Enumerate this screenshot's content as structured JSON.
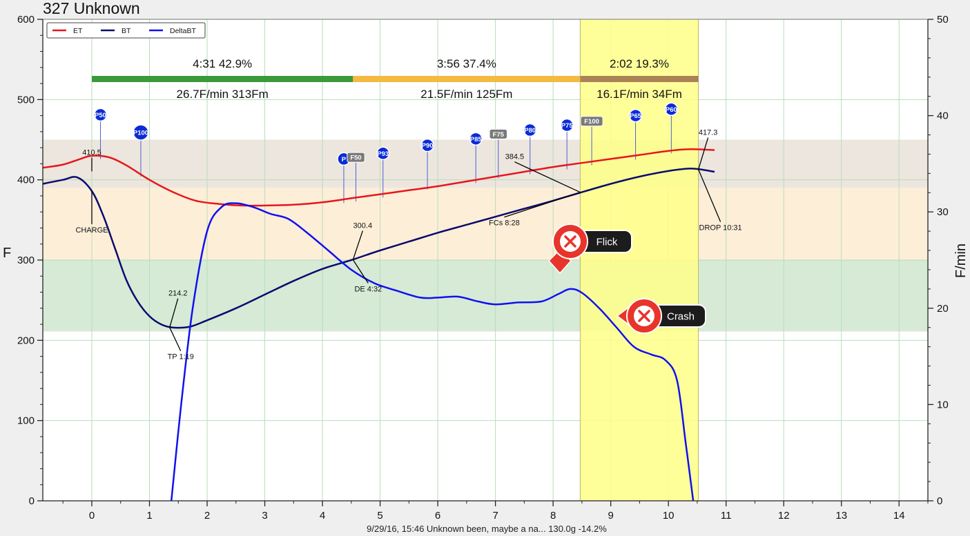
{
  "title": "327 Unknown",
  "footer": "9/29/16, 15:46   Unknown been, maybe a na...   130.0g   -14.2%",
  "y_left_label": "F",
  "y_right_label": "F/min",
  "colors": {
    "et": "#e8151b",
    "bt": "#0a0a6e",
    "delta": "#1010f0",
    "highlight": "#ffff88",
    "dry_phase": "#3a9a3a",
    "maillard_phase": "#f5b942",
    "dev_phase": "#a98356",
    "band_green": "#d6ead6",
    "band_orange": "#fdeed8",
    "band_gray": "#ece6de",
    "bubble_red": "#e8342a",
    "bubble_dark": "#1c1c1c"
  },
  "legend": [
    {
      "label": "ET",
      "color": "#e8151b"
    },
    {
      "label": "BT",
      "color": "#0a0a6e"
    },
    {
      "label": "DeltaBT",
      "color": "#1010f0"
    }
  ],
  "phases": [
    {
      "top": "4:31  42.9%",
      "bottom": "26.7F/min  313Fm",
      "start": 0,
      "end": 4.53,
      "color": "#3a9a3a"
    },
    {
      "top": "3:56  37.4%",
      "bottom": "21.5F/min  125Fm",
      "start": 4.53,
      "end": 8.47,
      "color": "#f5b942"
    },
    {
      "top": "2:02  19.3%",
      "bottom": "16.1F/min  34Fm",
      "start": 8.47,
      "end": 10.52,
      "color": "#a98356"
    }
  ],
  "bubbles": [
    {
      "label": "Flick",
      "pointer": "down"
    },
    {
      "label": "Crash",
      "pointer": "left"
    }
  ],
  "chart_data": {
    "type": "line",
    "title": "327 Unknown",
    "xlabel": "",
    "ylabel": "F",
    "y2label": "F/min",
    "xlim": [
      -0.85,
      14.5
    ],
    "ylim": [
      0,
      600
    ],
    "y2lim": [
      0,
      50
    ],
    "x_ticks": [
      0,
      1,
      2,
      3,
      4,
      5,
      6,
      7,
      8,
      9,
      10,
      11,
      12,
      13,
      14
    ],
    "y_ticks": [
      0,
      100,
      200,
      300,
      400,
      500,
      600
    ],
    "y2_ticks": [
      0,
      10,
      20,
      30,
      40,
      50
    ],
    "grid": true,
    "legend_position": "top-left",
    "bands": [
      {
        "from": 211,
        "to": 300,
        "color": "#d6ead6"
      },
      {
        "from": 300,
        "to": 390,
        "color": "#fdeed8"
      },
      {
        "from": 390,
        "to": 450,
        "color": "#ece6de"
      }
    ],
    "highlight_x": [
      8.47,
      10.52
    ],
    "series": [
      {
        "name": "ET",
        "axis": "left",
        "color": "#e8151b",
        "width": 2.5,
        "x": [
          -0.85,
          -0.5,
          -0.2,
          0,
          0.3,
          0.6,
          1.0,
          1.4,
          1.8,
          2.2,
          2.6,
          3.0,
          3.5,
          4.0,
          4.5,
          5.0,
          5.5,
          6.0,
          6.5,
          7.0,
          7.5,
          8.0,
          8.5,
          9.0,
          9.5,
          10.0,
          10.3,
          10.55,
          10.8
        ],
        "y": [
          415,
          419,
          426,
          430,
          428,
          418,
          400,
          385,
          374,
          370,
          368,
          368,
          369,
          372,
          377,
          382,
          387,
          392,
          398,
          404,
          410,
          416,
          421,
          426,
          431,
          436,
          438,
          438,
          437
        ]
      },
      {
        "name": "BT",
        "axis": "left",
        "color": "#0a0a6e",
        "width": 2.5,
        "x": [
          -0.85,
          -0.5,
          -0.25,
          0,
          0.2,
          0.4,
          0.6,
          0.8,
          1.0,
          1.2,
          1.4,
          1.7,
          2.0,
          2.5,
          3.0,
          3.5,
          4.0,
          4.5,
          5.0,
          5.5,
          6.0,
          6.5,
          7.0,
          7.5,
          8.0,
          8.47,
          9.0,
          9.5,
          10.0,
          10.35,
          10.55,
          10.8
        ],
        "y": [
          395,
          400,
          403,
          386,
          355,
          315,
          275,
          248,
          230,
          220,
          216,
          217,
          225,
          240,
          257,
          274,
          289,
          300,
          312,
          323,
          334,
          344,
          354,
          364,
          374,
          384,
          395,
          404,
          411,
          414,
          413,
          410
        ]
      },
      {
        "name": "DeltaBT",
        "axis": "right",
        "color": "#1010f0",
        "width": 2.5,
        "x": [
          1.38,
          1.55,
          1.75,
          2.0,
          2.25,
          2.5,
          2.8,
          3.1,
          3.4,
          3.7,
          4.1,
          4.5,
          4.9,
          5.3,
          5.7,
          6.0,
          6.35,
          6.7,
          7.0,
          7.4,
          7.8,
          8.1,
          8.3,
          8.5,
          8.8,
          9.1,
          9.4,
          9.7,
          9.95,
          10.15,
          10.3,
          10.43
        ],
        "y": [
          0,
          10,
          20,
          28,
          30.5,
          30.9,
          30.5,
          29.8,
          29.3,
          28.0,
          26.0,
          24.0,
          22.6,
          21.8,
          21.1,
          21.1,
          21.2,
          20.7,
          20.4,
          20.6,
          20.7,
          21.5,
          22.0,
          21.6,
          20.0,
          18.0,
          16.0,
          15.2,
          14.6,
          12.5,
          6.0,
          0
        ]
      }
    ],
    "annotations": [
      {
        "text": "410.5",
        "x": 0.0,
        "y": 410.5
      },
      {
        "text": "CHARGE",
        "x": 0.0,
        "y": 386
      },
      {
        "text": "214.2",
        "x": 1.35,
        "y": 216
      },
      {
        "text": "TP 1:19",
        "x": 1.35,
        "y": 216
      },
      {
        "text": "300.4",
        "x": 4.53,
        "y": 300.4
      },
      {
        "text": "DE 4:32",
        "x": 4.53,
        "y": 300.4
      },
      {
        "text": "384.5",
        "x": 8.47,
        "y": 384.5
      },
      {
        "text": "FCs 8:28",
        "x": 8.47,
        "y": 384.5
      },
      {
        "text": "417.3",
        "x": 10.52,
        "y": 413
      },
      {
        "text": "DROP 10:31",
        "x": 10.52,
        "y": 413
      }
    ],
    "markers": [
      {
        "label": "P50",
        "x": 0.15,
        "y": 481,
        "type": "P"
      },
      {
        "label": "P100",
        "x": 0.85,
        "y": 459,
        "type": "P"
      },
      {
        "label": "P",
        "x": 4.37,
        "y": 426,
        "type": "P"
      },
      {
        "label": "F50",
        "x": 4.58,
        "y": 428,
        "type": "F"
      },
      {
        "label": "P93",
        "x": 5.05,
        "y": 433,
        "type": "P"
      },
      {
        "label": "P90",
        "x": 5.82,
        "y": 443,
        "type": "P"
      },
      {
        "label": "P85",
        "x": 6.66,
        "y": 451,
        "type": "P"
      },
      {
        "label": "F75",
        "x": 7.05,
        "y": 457,
        "type": "F"
      },
      {
        "label": "P80",
        "x": 7.6,
        "y": 462,
        "type": "P"
      },
      {
        "label": "P75",
        "x": 8.24,
        "y": 468,
        "type": "P"
      },
      {
        "label": "F100",
        "x": 8.67,
        "y": 473,
        "type": "F"
      },
      {
        "label": "P65",
        "x": 9.43,
        "y": 480,
        "type": "P"
      },
      {
        "label": "P60",
        "x": 10.05,
        "y": 488,
        "type": "P"
      }
    ]
  }
}
